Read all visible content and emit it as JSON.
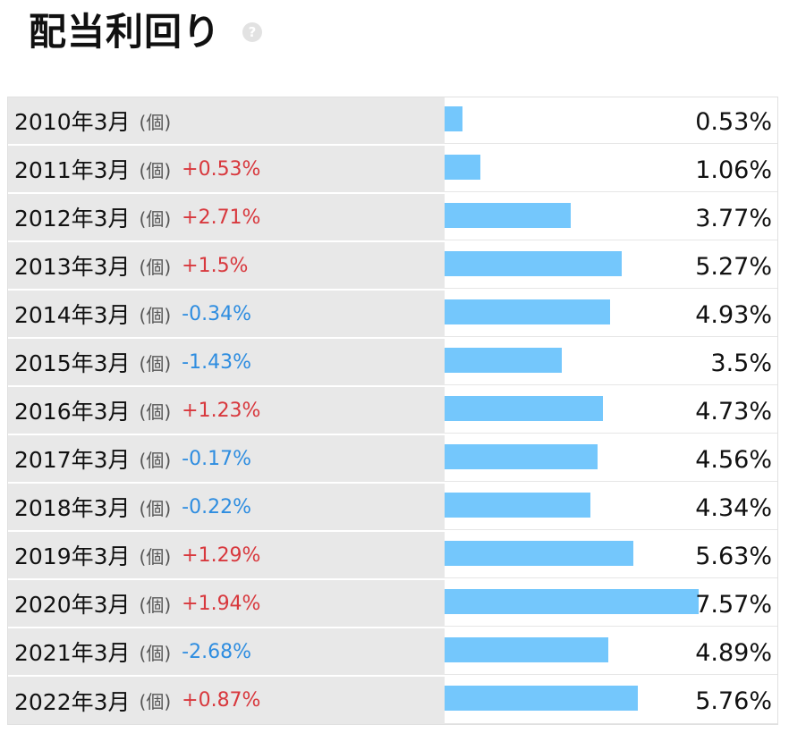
{
  "header": {
    "title": "配当利回り",
    "help_icon": "question-circle-icon",
    "help_glyph": "?"
  },
  "colors": {
    "bar": "#74c7fc",
    "increase": "#d8383d",
    "decrease": "#2e8de0",
    "label_background": "#e8e8e8"
  },
  "rows": [
    {
      "year": "2010年3月",
      "unit": "(個)",
      "change": "",
      "direction": "none",
      "value": "0.53%",
      "yield": 0.53
    },
    {
      "year": "2011年3月",
      "unit": "(個)",
      "change": "+0.53%",
      "direction": "up",
      "value": "1.06%",
      "yield": 1.06
    },
    {
      "year": "2012年3月",
      "unit": "(個)",
      "change": "+2.71%",
      "direction": "up",
      "value": "3.77%",
      "yield": 3.77
    },
    {
      "year": "2013年3月",
      "unit": "(個)",
      "change": "+1.5%",
      "direction": "up",
      "value": "5.27%",
      "yield": 5.27
    },
    {
      "year": "2014年3月",
      "unit": "(個)",
      "change": "-0.34%",
      "direction": "down",
      "value": "4.93%",
      "yield": 4.93
    },
    {
      "year": "2015年3月",
      "unit": "(個)",
      "change": "-1.43%",
      "direction": "down",
      "value": "3.5%",
      "yield": 3.5
    },
    {
      "year": "2016年3月",
      "unit": "(個)",
      "change": "+1.23%",
      "direction": "up",
      "value": "4.73%",
      "yield": 4.73
    },
    {
      "year": "2017年3月",
      "unit": "(個)",
      "change": "-0.17%",
      "direction": "down",
      "value": "4.56%",
      "yield": 4.56
    },
    {
      "year": "2018年3月",
      "unit": "(個)",
      "change": "-0.22%",
      "direction": "down",
      "value": "4.34%",
      "yield": 4.34
    },
    {
      "year": "2019年3月",
      "unit": "(個)",
      "change": "+1.29%",
      "direction": "up",
      "value": "5.63%",
      "yield": 5.63
    },
    {
      "year": "2020年3月",
      "unit": "(個)",
      "change": "+1.94%",
      "direction": "up",
      "value": "7.57%",
      "yield": 7.57
    },
    {
      "year": "2021年3月",
      "unit": "(個)",
      "change": "-2.68%",
      "direction": "down",
      "value": "4.89%",
      "yield": 4.89
    },
    {
      "year": "2022年3月",
      "unit": "(個)",
      "change": "+0.87%",
      "direction": "up",
      "value": "5.76%",
      "yield": 5.76
    }
  ]
}
